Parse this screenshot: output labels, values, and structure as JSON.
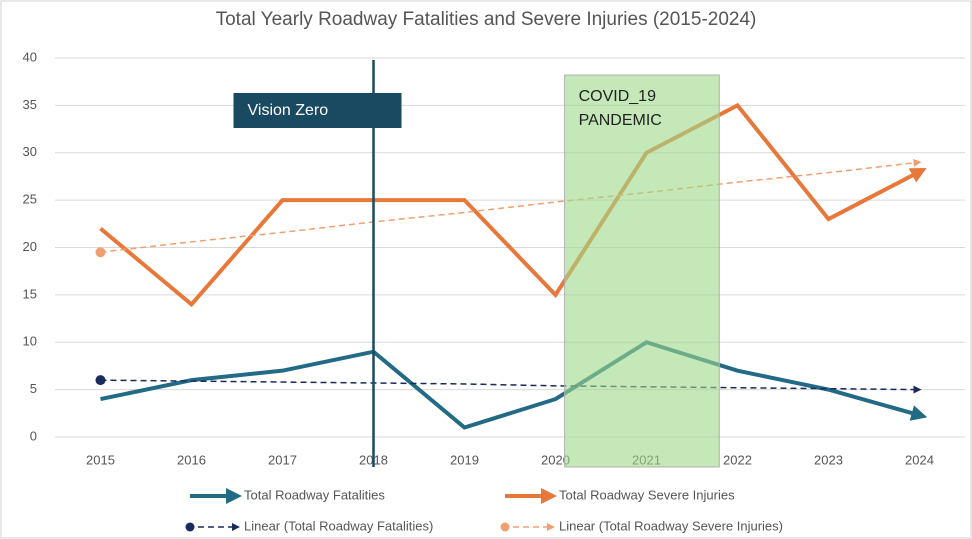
{
  "chart_data": {
    "type": "line",
    "title": "Total Yearly Roadway Fatalities and Severe Injuries (2015-2024)",
    "x": [
      2015,
      2016,
      2017,
      2018,
      2019,
      2020,
      2021,
      2022,
      2023,
      2024
    ],
    "xlim": [
      2014.5,
      2024.5
    ],
    "xticks": [
      2015,
      2016,
      2017,
      2018,
      2019,
      2020,
      2021,
      2022,
      2023,
      2024
    ],
    "ylim": [
      0,
      40
    ],
    "yticks": [
      0,
      5,
      10,
      15,
      20,
      25,
      30,
      35,
      40
    ],
    "grid": true,
    "legend": "bottom",
    "series": [
      {
        "name": "Total Roadway Fatalities",
        "color": "#236a87",
        "values": [
          4,
          6,
          7,
          9,
          1,
          4,
          10,
          7,
          5,
          2.3
        ]
      },
      {
        "name": "Total Roadway Severe Injuries",
        "color": "#e8783a",
        "values": [
          22,
          14,
          25,
          25,
          25,
          15,
          30,
          35,
          23,
          28
        ]
      },
      {
        "name": "Linear (Total Roadway Fatalities)",
        "color": "#1b2a5c",
        "dashed": true,
        "values": [
          6,
          5.9,
          5.8,
          5.7,
          5.6,
          5.4,
          5.3,
          5.2,
          5.1,
          5.0
        ]
      },
      {
        "name": "Linear (Total Roadway Severe Injuries)",
        "color": "#f0a070",
        "dashed": true,
        "values": [
          19.5,
          20.6,
          21.6,
          22.7,
          23.7,
          24.8,
          25.8,
          26.9,
          27.9,
          29.0
        ]
      }
    ],
    "annotations": [
      {
        "text": "Vision Zero",
        "x": 2018,
        "color": "#1a4a62"
      },
      {
        "lines": [
          "COVID_19",
          "PANDEMIC"
        ],
        "x_range": [
          2020.1,
          2021.8
        ],
        "color": "#9ed98a"
      }
    ]
  }
}
